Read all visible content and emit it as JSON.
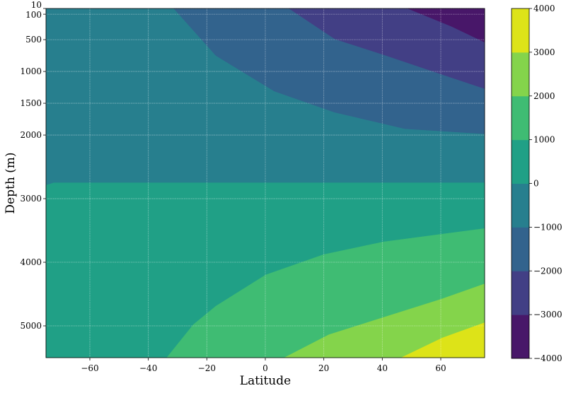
{
  "chart_data": {
    "type": "contourf",
    "title": "",
    "xlabel": "Latitude",
    "ylabel": "Depth (m)",
    "xlim": [
      -75,
      75
    ],
    "ylim": [
      10,
      5500
    ],
    "y_inverted": true,
    "grid": true,
    "x_ticks": [
      -60,
      -40,
      -20,
      0,
      20,
      40,
      60
    ],
    "x_tick_labels": [
      "−60",
      "−40",
      "−20",
      "0",
      "20",
      "40",
      "60"
    ],
    "y_ticks": [
      10,
      100,
      500,
      1000,
      1500,
      2000,
      3000,
      4000,
      5000
    ],
    "y_tick_labels": [
      "10",
      "100",
      "500",
      "1000",
      "1500",
      "2000",
      "3000",
      "4000",
      "5000"
    ],
    "colorbar": {
      "levels": [
        -4000,
        -3000,
        -2000,
        -1000,
        0,
        1000,
        2000,
        3000,
        4000
      ],
      "tick_labels": [
        "−4000",
        "−3000",
        "−2000",
        "−1000",
        "0",
        "1000",
        "2000",
        "3000",
        "4000"
      ],
      "colors": [
        "#481769",
        "#423f85",
        "#32638d",
        "#277f8e",
        "#20a086",
        "#3fbc73",
        "#84d44b",
        "#dde318"
      ],
      "colormap": "viridis"
    },
    "contours": [
      {
        "level": -3000,
        "points": [
          [
            48.7,
            10
          ],
          [
            63.6,
            290
          ],
          [
            75,
            540
          ]
        ]
      },
      {
        "level": -2000,
        "points": [
          [
            8.1,
            10
          ],
          [
            23.8,
            490
          ],
          [
            40.7,
            740
          ],
          [
            60,
            1040
          ],
          [
            75,
            1270
          ]
        ]
      },
      {
        "level": -1000,
        "points": [
          [
            -31.3,
            10
          ],
          [
            -16.9,
            750
          ],
          [
            3.1,
            1310
          ],
          [
            23.6,
            1640
          ],
          [
            47.7,
            1900
          ],
          [
            75,
            1980
          ]
        ]
      },
      {
        "level": 0,
        "points": [
          [
            -75,
            2790
          ],
          [
            -72.3,
            2750
          ],
          [
            75,
            2750
          ]
        ]
      },
      {
        "level": 1000,
        "points": [
          [
            -33.7,
            5500
          ],
          [
            -24.6,
            4980
          ],
          [
            -16.9,
            4690
          ],
          [
            0.1,
            4200
          ],
          [
            19.9,
            3880
          ],
          [
            40.4,
            3680
          ],
          [
            75,
            3470
          ]
        ]
      },
      {
        "level": 2000,
        "points": [
          [
            6.5,
            5500
          ],
          [
            21.7,
            5140
          ],
          [
            40.9,
            4860
          ],
          [
            60.2,
            4580
          ],
          [
            75,
            4340
          ]
        ]
      },
      {
        "level": 3000,
        "points": [
          [
            46.5,
            5500
          ],
          [
            60.5,
            5190
          ],
          [
            75,
            4950
          ]
        ]
      }
    ],
    "regions_description": "Negative values concentrated at shallow depths toward high northern latitudes (min near 60-75N, surface); positive values at depth toward northern latitudes (max near 60-75N, 5500 m)."
  }
}
